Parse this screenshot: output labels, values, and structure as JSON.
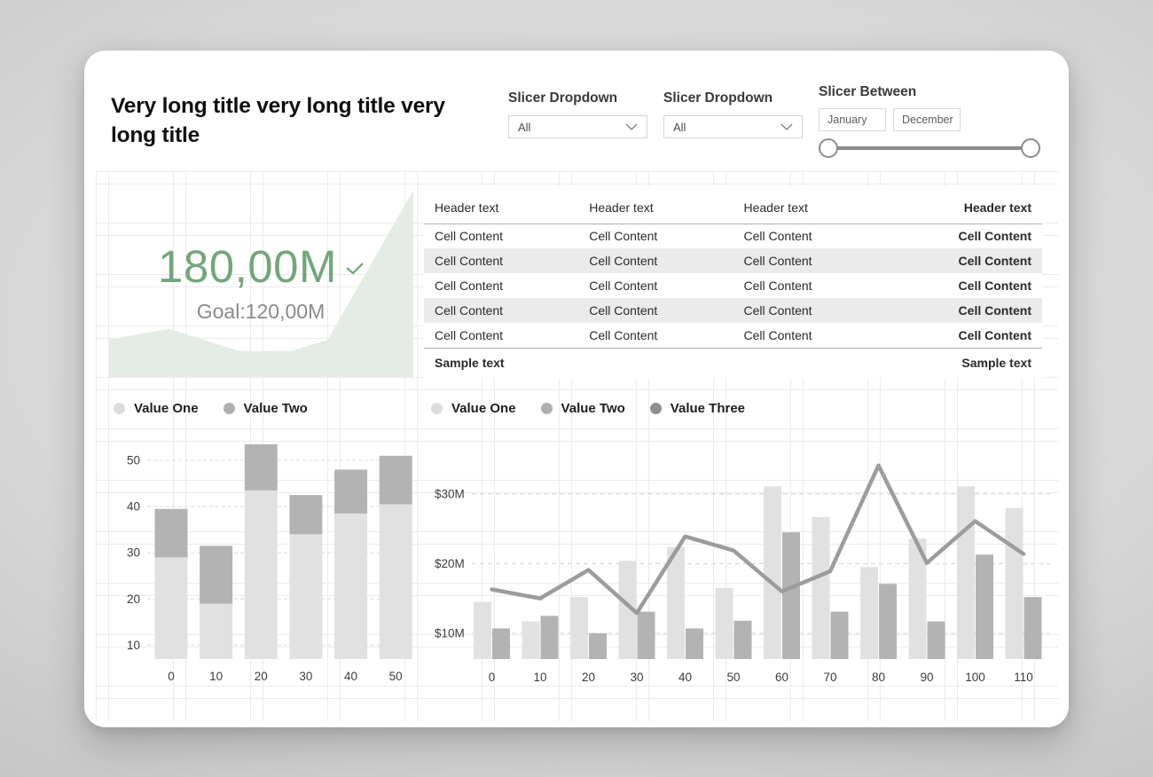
{
  "header": {
    "title": "Very long title very long title very long title"
  },
  "slicers": {
    "dropdown1": {
      "label": "Slicer Dropdown",
      "value": "All"
    },
    "dropdown2": {
      "label": "Slicer Dropdown",
      "value": "All"
    },
    "between": {
      "label": "Slicer Between",
      "start": "January",
      "end": "December"
    }
  },
  "kpi": {
    "value": "180,00M",
    "goal_label": "Goal:120,00M",
    "accent_color": "#74a67c",
    "area_fill": "#e4ece5",
    "indicator_icon": "check-icon"
  },
  "table": {
    "headers": [
      "Header text",
      "Header text",
      "Header text",
      "Header text"
    ],
    "rows": [
      [
        "Cell Content",
        "Cell Content",
        "Cell Content",
        "Cell Content"
      ],
      [
        "Cell Content",
        "Cell Content",
        "Cell Content",
        "Cell Content"
      ],
      [
        "Cell Content",
        "Cell Content",
        "Cell Content",
        "Cell Content"
      ],
      [
        "Cell Content",
        "Cell Content",
        "Cell Content",
        "Cell Content"
      ],
      [
        "Cell Content",
        "Cell Content",
        "Cell Content",
        "Cell Content"
      ]
    ],
    "footer": {
      "left": "Sample text",
      "right": "Sample text"
    }
  },
  "chart_data": [
    {
      "id": "kpi-sparkline",
      "type": "area",
      "title": "KPI trend sparkline",
      "fill": "#e4ece5",
      "points_pct": [
        [
          0,
          80
        ],
        [
          20,
          74.5
        ],
        [
          43,
          86
        ],
        [
          60,
          86
        ],
        [
          72,
          80
        ],
        [
          100,
          2
        ]
      ]
    },
    {
      "id": "stacked-bar-chart",
      "type": "bar",
      "stacked": true,
      "categories": [
        "0",
        "10",
        "20",
        "30",
        "40",
        "50"
      ],
      "series": [
        {
          "name": "Value One",
          "values": [
            29,
            19,
            43.5,
            34,
            38.5,
            40.5
          ],
          "color": "#e1e1e1",
          "legend_color": "#dcdcdc"
        },
        {
          "name": "Value Two",
          "values": [
            10.5,
            12.5,
            10,
            8.5,
            9.5,
            10.5
          ],
          "color": "#b3b3b3",
          "legend_color": "#b0b0b0"
        }
      ],
      "y_ticks": [
        {
          "value": 10,
          "label": "10"
        },
        {
          "value": 20,
          "label": "20"
        },
        {
          "value": 30,
          "label": "30"
        },
        {
          "value": 40,
          "label": "40"
        },
        {
          "value": 50,
          "label": "50"
        }
      ],
      "ylim": [
        7,
        57.5
      ],
      "grid": "dashed-horizontal",
      "legend_position": "top"
    },
    {
      "id": "combo-chart",
      "type": "bar+line",
      "categories": [
        "0",
        "10",
        "20",
        "30",
        "40",
        "50",
        "60",
        "70",
        "80",
        "90",
        "100",
        "110"
      ],
      "series": [
        {
          "name": "Value One",
          "type": "bar",
          "values": [
            14.5,
            11.7,
            15.2,
            20.4,
            22.4,
            16.5,
            31.1,
            26.7,
            19.5,
            23.6,
            31.1,
            28.0
          ],
          "color": "#e1e1e1",
          "legend_color": "#dcdcdc"
        },
        {
          "name": "Value Two",
          "type": "bar",
          "values": [
            10.7,
            12.5,
            10.0,
            13.1,
            10.7,
            11.8,
            24.5,
            13.1,
            17.1,
            11.7,
            21.3,
            15.2
          ],
          "color": "#b3b3b3",
          "legend_color": "#b0b0b0"
        },
        {
          "name": "Value Three",
          "type": "line",
          "values": [
            16.3,
            15.0,
            19.1,
            12.9,
            23.9,
            21.9,
            16.0,
            18.9,
            34.1,
            20.1,
            26.1,
            21.4
          ],
          "color": "#9c9c9c",
          "legend_color": "#8f8f8f"
        }
      ],
      "y_ticks": [
        {
          "value": 10,
          "label": "$10M"
        },
        {
          "value": 20,
          "label": "$20M"
        },
        {
          "value": 30,
          "label": "$30M"
        }
      ],
      "ylim": [
        6.3,
        39.8
      ],
      "grid": "dashed-horizontal",
      "legend_position": "top"
    }
  ]
}
